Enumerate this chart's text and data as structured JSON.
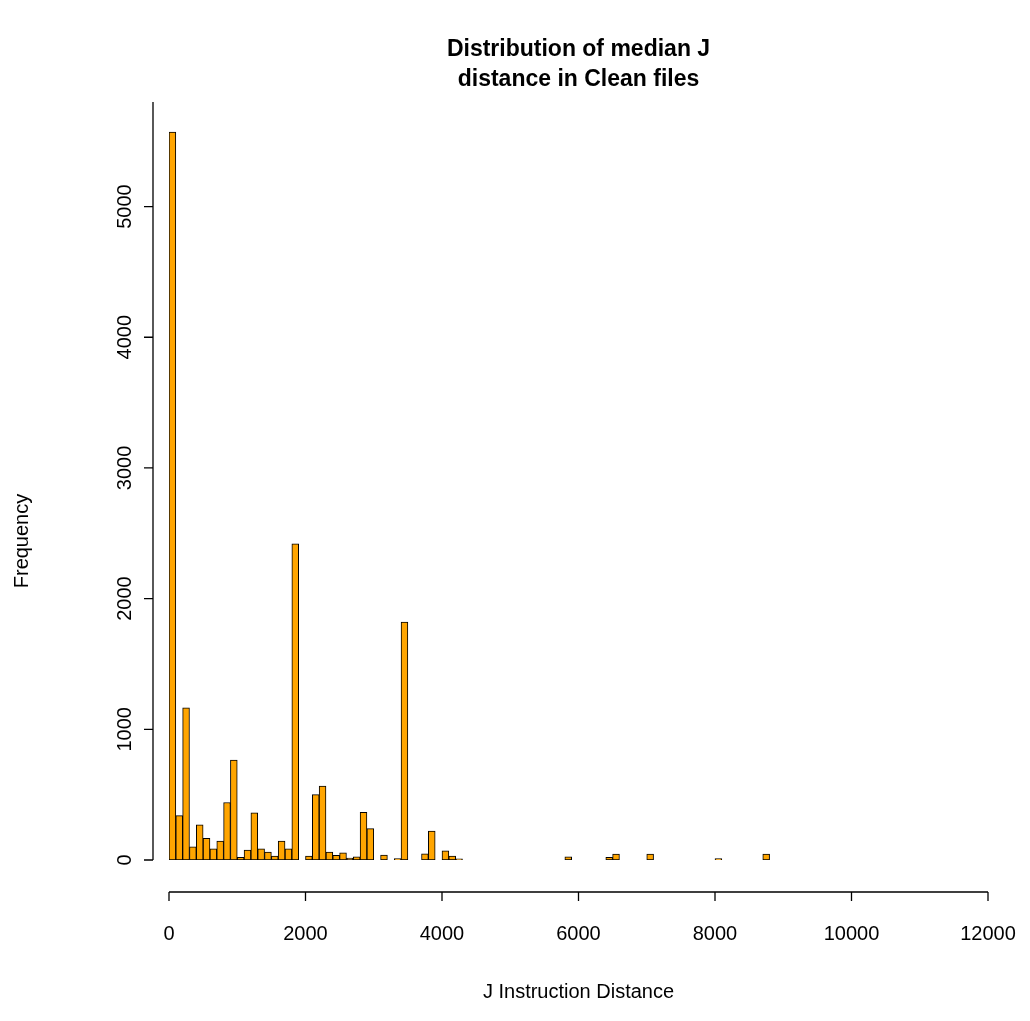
{
  "chart_data": {
    "type": "histogram",
    "title": "Distribution of median J\ndistance in Clean files",
    "xlabel": "J Instruction Distance",
    "ylabel": "Frequency",
    "color": "#ffa500",
    "bins": [
      0,
      100,
      200,
      300,
      400,
      500,
      600,
      700,
      800,
      900,
      1000,
      1100,
      1200,
      1300,
      1400,
      1500,
      1600,
      1700,
      1800,
      1900,
      2000,
      2100,
      2200,
      2300,
      2400,
      2500,
      2600,
      2700,
      2800,
      2900,
      3000,
      3100,
      3200,
      3300,
      3400,
      3500,
      3600,
      3700,
      3800,
      3900,
      4000,
      4100,
      4200,
      4300,
      4400,
      4500,
      4600,
      4700,
      4800,
      4900,
      5000,
      5100,
      5200,
      5300,
      5400,
      5500,
      5600,
      5700,
      5800,
      5900,
      6000,
      6100,
      6200,
      6300,
      6400,
      6500,
      6600,
      6700,
      6800,
      6900,
      7000,
      7100,
      7200,
      7300,
      7400,
      7500,
      7600,
      7700,
      7800,
      7900,
      8000,
      8100,
      8200,
      8300,
      8400,
      8500,
      8600,
      8700,
      8800,
      8900,
      9000,
      9100,
      9200,
      9300,
      9400,
      9500,
      9600,
      9700,
      9800,
      9900,
      10000,
      10100,
      10200,
      10300,
      10400,
      10500,
      10600,
      10700,
      10800,
      10900,
      11000,
      11100,
      11200,
      11300,
      11400,
      11500,
      11600,
      11700,
      11800,
      11900
    ],
    "values": [
      5570,
      340,
      1165,
      100,
      270,
      165,
      85,
      145,
      440,
      765,
      20,
      75,
      360,
      85,
      60,
      30,
      145,
      85,
      2420,
      0,
      30,
      500,
      565,
      60,
      35,
      55,
      15,
      25,
      365,
      240,
      0,
      38,
      0,
      10,
      1820,
      0,
      0,
      48,
      222,
      0,
      70,
      30,
      8,
      0,
      0,
      0,
      0,
      0,
      0,
      0,
      0,
      0,
      0,
      0,
      0,
      0,
      0,
      0,
      25,
      0,
      0,
      0,
      0,
      0,
      20,
      45,
      0,
      0,
      0,
      0,
      45,
      0,
      0,
      0,
      0,
      0,
      0,
      0,
      0,
      0,
      10,
      0,
      0,
      0,
      0,
      0,
      0,
      45,
      0,
      0,
      0,
      0,
      0,
      0,
      0,
      0,
      0,
      0,
      0,
      0,
      0,
      0,
      0,
      0,
      0,
      0,
      0,
      0,
      0,
      0,
      0,
      0,
      0,
      0,
      0,
      0,
      0,
      0,
      0
    ],
    "xlim": [
      0,
      12000
    ],
    "ylim": [
      0,
      5800
    ],
    "xticks": [
      0,
      2000,
      4000,
      6000,
      8000,
      10000,
      12000
    ],
    "yticks": [
      0,
      1000,
      2000,
      3000,
      4000,
      5000
    ]
  }
}
